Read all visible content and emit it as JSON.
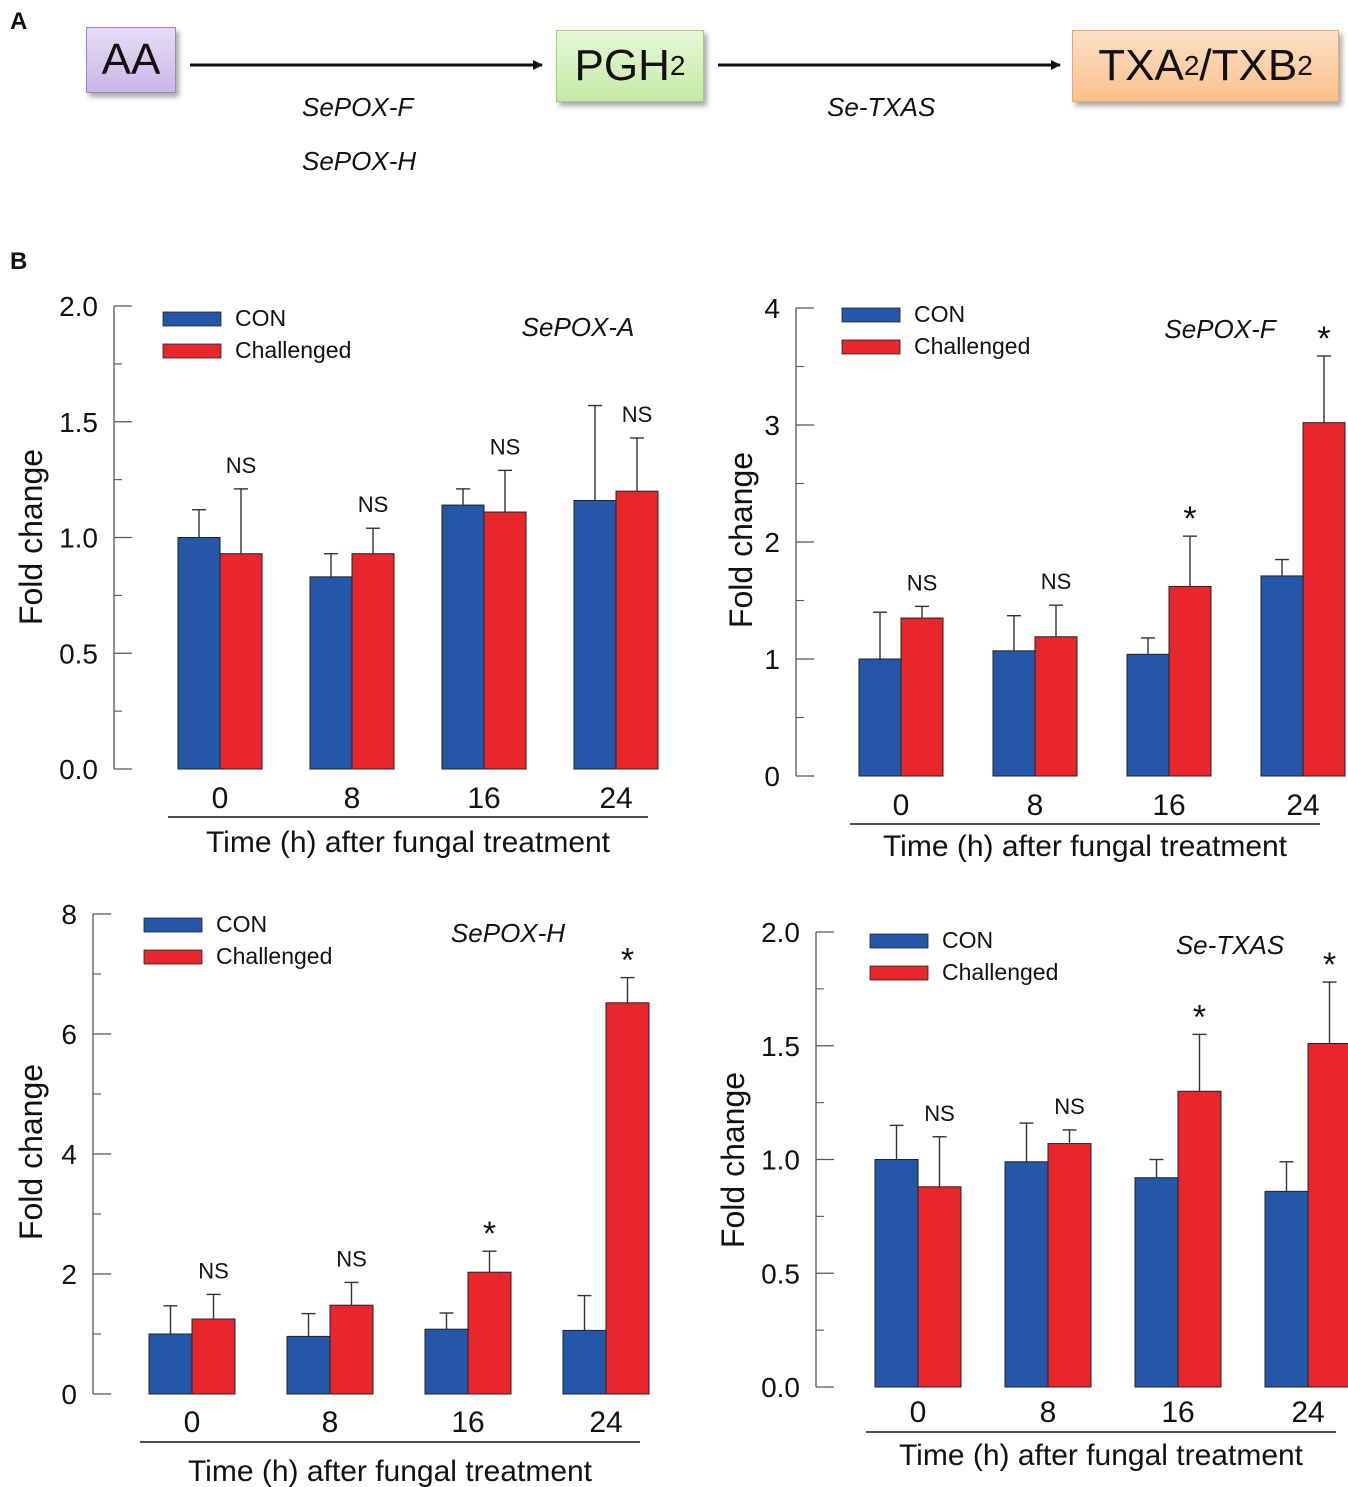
{
  "panel_a_label": "A",
  "panel_b_label": "B",
  "pathway": {
    "substrate": "AA",
    "intermediate": {
      "main": "PGH",
      "sub": "2"
    },
    "product": {
      "part1": "TXA",
      "sub1": "2",
      "sep": "/TXB",
      "sub2": "2"
    },
    "enzymes_step1": [
      "SePOX-F",
      "SePOX-H"
    ],
    "enzymes_step2": [
      "Se-TXAS"
    ]
  },
  "colors": {
    "con": "#2457a8",
    "challenged": "#e8262b",
    "axis": "#555555"
  },
  "legend": {
    "con": "CON",
    "challenged": "Challenged"
  },
  "chart_data": [
    {
      "type": "bar",
      "id": "sepox-a",
      "title": "SePOX-A",
      "categories": [
        "0",
        "8",
        "16",
        "24"
      ],
      "xlabel": "Time (h) after fungal treatment",
      "ylabel": "Fold change",
      "ylim": [
        0,
        2.0
      ],
      "yticks": [
        "0.0",
        "0.5",
        "1.0",
        "1.5",
        "2.0"
      ],
      "series": [
        {
          "name": "CON",
          "values": [
            1.0,
            0.83,
            1.14,
            1.16
          ],
          "errors": [
            0.12,
            0.1,
            0.07,
            0.41
          ]
        },
        {
          "name": "Challenged",
          "values": [
            0.93,
            0.93,
            1.11,
            1.2
          ],
          "errors": [
            0.28,
            0.11,
            0.18,
            0.23
          ]
        }
      ],
      "annotations": [
        "NS",
        "NS",
        "NS",
        "NS"
      ]
    },
    {
      "type": "bar",
      "id": "sepox-f",
      "title": "SePOX-F",
      "categories": [
        "0",
        "8",
        "16",
        "24"
      ],
      "xlabel": "Time (h) after fungal treatment",
      "ylabel": "Fold change",
      "ylim": [
        0,
        4
      ],
      "yticks": [
        "0",
        "1",
        "2",
        "3",
        "4"
      ],
      "series": [
        {
          "name": "CON",
          "values": [
            1.0,
            1.07,
            1.04,
            1.71
          ],
          "errors": [
            0.4,
            0.3,
            0.14,
            0.14
          ]
        },
        {
          "name": "Challenged",
          "values": [
            1.35,
            1.19,
            1.62,
            3.02
          ],
          "errors": [
            0.1,
            0.27,
            0.43,
            0.57
          ]
        }
      ],
      "annotations": [
        "NS",
        "NS",
        "*",
        "*"
      ]
    },
    {
      "type": "bar",
      "id": "sepox-h",
      "title": "SePOX-H",
      "categories": [
        "0",
        "8",
        "16",
        "24"
      ],
      "xlabel": "Time (h) after fungal treatment",
      "ylabel": "Fold change",
      "ylim": [
        0,
        8
      ],
      "yticks": [
        "0",
        "2",
        "4",
        "6",
        "8"
      ],
      "series": [
        {
          "name": "CON",
          "values": [
            1.0,
            0.96,
            1.08,
            1.06
          ],
          "errors": [
            0.47,
            0.38,
            0.27,
            0.58
          ]
        },
        {
          "name": "Challenged",
          "values": [
            1.25,
            1.48,
            2.03,
            6.52
          ],
          "errors": [
            0.41,
            0.38,
            0.35,
            0.42
          ]
        }
      ],
      "annotations": [
        "NS",
        "NS",
        "*",
        "*"
      ]
    },
    {
      "type": "bar",
      "id": "se-txas",
      "title": "Se-TXAS",
      "categories": [
        "0",
        "8",
        "16",
        "24"
      ],
      "xlabel": "Time (h) after fungal treatment",
      "ylabel": "Fold change",
      "ylim": [
        0,
        2.0
      ],
      "yticks": [
        "0.0",
        "0.5",
        "1.0",
        "1.5",
        "2.0"
      ],
      "series": [
        {
          "name": "CON",
          "values": [
            1.0,
            0.99,
            0.92,
            0.86
          ],
          "errors": [
            0.15,
            0.17,
            0.08,
            0.13
          ]
        },
        {
          "name": "Challenged",
          "values": [
            0.88,
            1.07,
            1.3,
            1.51
          ],
          "errors": [
            0.22,
            0.06,
            0.25,
            0.27
          ]
        }
      ],
      "annotations": [
        "NS",
        "NS",
        "*",
        "*"
      ]
    }
  ]
}
